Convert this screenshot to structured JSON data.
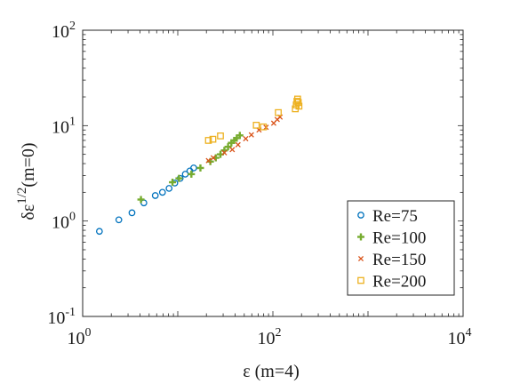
{
  "chart_data": {
    "type": "scatter",
    "xscale": "log",
    "yscale": "log",
    "xlim": [
      1,
      10000
    ],
    "ylim": [
      0.1,
      100
    ],
    "xticks": [
      {
        "base": "10",
        "exp": "0",
        "value": 1
      },
      {
        "base": "10",
        "exp": "2",
        "value": 100
      },
      {
        "base": "10",
        "exp": "4",
        "value": 10000
      }
    ],
    "yticks": [
      {
        "base": "10",
        "exp": "-1",
        "value": 0.1
      },
      {
        "base": "10",
        "exp": "0",
        "value": 1
      },
      {
        "base": "10",
        "exp": "1",
        "value": 10
      },
      {
        "base": "10",
        "exp": "2",
        "value": 100
      }
    ],
    "xlabel": "ε (m=4)",
    "ylabel": {
      "main": "δε",
      "sup": "1/2",
      "tail": "(m=0)"
    },
    "grid": false,
    "legend_position": "bottom-right",
    "series": [
      {
        "name": "Re=75",
        "marker": "circle",
        "color": "#0072BD",
        "points": [
          [
            1.5,
            0.78
          ],
          [
            2.4,
            1.03
          ],
          [
            3.3,
            1.22
          ],
          [
            4.4,
            1.55
          ],
          [
            5.8,
            1.85
          ],
          [
            6.9,
            2.0
          ],
          [
            8.1,
            2.2
          ],
          [
            9.3,
            2.5
          ],
          [
            10.6,
            2.8
          ],
          [
            12.0,
            3.1
          ],
          [
            13.4,
            3.35
          ],
          [
            14.7,
            3.6
          ]
        ]
      },
      {
        "name": "Re=100",
        "marker": "plus",
        "color": "#77AC30",
        "points": [
          [
            4.1,
            1.68
          ],
          [
            8.8,
            2.55
          ],
          [
            10.3,
            2.8
          ],
          [
            13.9,
            3.1
          ],
          [
            17.3,
            3.6
          ],
          [
            22.0,
            4.2
          ],
          [
            25.1,
            4.6
          ],
          [
            28.1,
            5.0
          ],
          [
            30.9,
            5.5
          ],
          [
            33.8,
            6.0
          ],
          [
            36.6,
            6.6
          ],
          [
            39.2,
            7.0
          ],
          [
            41.7,
            7.4
          ],
          [
            44.9,
            7.9
          ]
        ]
      },
      {
        "name": "Re=150",
        "marker": "x",
        "color": "#D95319",
        "points": [
          [
            21.0,
            4.3
          ],
          [
            23.6,
            4.6
          ],
          [
            30.9,
            5.2
          ],
          [
            37.4,
            5.6
          ],
          [
            43.0,
            6.3
          ],
          [
            51.8,
            7.3
          ],
          [
            59.4,
            8.0
          ],
          [
            71.5,
            9.0
          ],
          [
            84.8,
            9.6
          ],
          [
            102,
            10.6
          ],
          [
            111,
            11.6
          ],
          [
            119,
            12.3
          ]
        ]
      },
      {
        "name": "Re=200",
        "marker": "square",
        "color": "#EDB120",
        "points": [
          [
            21.0,
            7.0
          ],
          [
            23.4,
            7.2
          ],
          [
            28.1,
            7.8
          ],
          [
            66.9,
            10.1
          ],
          [
            79.4,
            9.7
          ],
          [
            114,
            13.7
          ],
          [
            172,
            15.0
          ],
          [
            176,
            16.5
          ],
          [
            179,
            18.0
          ],
          [
            182,
            19.0
          ],
          [
            185,
            17.5
          ],
          [
            188,
            16.0
          ]
        ]
      }
    ]
  }
}
